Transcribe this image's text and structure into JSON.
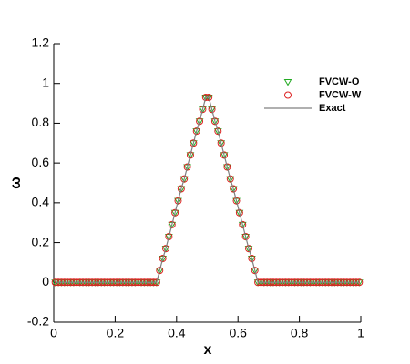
{
  "chart_data": {
    "type": "line",
    "x_label": "x",
    "y_label": "ω",
    "xlim": [
      0,
      1
    ],
    "ylim": [
      -0.2,
      1.2
    ],
    "xticks": [
      0,
      0.2,
      0.4,
      0.6,
      0.8,
      1
    ],
    "yticks": [
      -0.2,
      0,
      0.2,
      0.4,
      0.6,
      0.8,
      1,
      1.2
    ],
    "x": [
      0.005,
      0.015,
      0.025,
      0.035,
      0.045,
      0.055,
      0.065,
      0.075,
      0.085,
      0.095,
      0.105,
      0.115,
      0.125,
      0.135,
      0.145,
      0.155,
      0.165,
      0.175,
      0.185,
      0.195,
      0.205,
      0.215,
      0.225,
      0.235,
      0.245,
      0.255,
      0.265,
      0.275,
      0.285,
      0.295,
      0.305,
      0.315,
      0.325,
      0.335,
      0.345,
      0.355,
      0.365,
      0.375,
      0.385,
      0.395,
      0.405,
      0.415,
      0.425,
      0.435,
      0.445,
      0.455,
      0.465,
      0.475,
      0.485,
      0.495,
      0.505,
      0.515,
      0.525,
      0.535,
      0.545,
      0.555,
      0.565,
      0.575,
      0.585,
      0.595,
      0.605,
      0.615,
      0.625,
      0.635,
      0.645,
      0.655,
      0.665,
      0.675,
      0.685,
      0.695,
      0.705,
      0.715,
      0.725,
      0.735,
      0.745,
      0.755,
      0.765,
      0.775,
      0.785,
      0.795,
      0.805,
      0.815,
      0.825,
      0.835,
      0.845,
      0.855,
      0.865,
      0.875,
      0.885,
      0.895,
      0.905,
      0.915,
      0.925,
      0.935,
      0.945,
      0.955,
      0.965,
      0.975,
      0.985,
      0.995
    ],
    "series": [
      {
        "name": "FVCW-O",
        "color": "#22aa22",
        "marker": "triangle-down",
        "values": [
          0,
          0,
          0,
          0,
          0,
          0,
          0,
          0,
          0,
          0,
          0,
          0,
          0,
          0,
          0,
          0,
          0,
          0,
          0,
          0,
          0,
          0,
          0,
          0,
          0,
          0,
          0,
          0,
          0,
          0,
          0,
          0,
          0,
          0,
          0.06,
          0.12,
          0.17,
          0.23,
          0.29,
          0.35,
          0.41,
          0.47,
          0.52,
          0.58,
          0.64,
          0.7,
          0.76,
          0.81,
          0.87,
          0.93,
          0.93,
          0.87,
          0.81,
          0.76,
          0.7,
          0.64,
          0.58,
          0.52,
          0.47,
          0.41,
          0.35,
          0.29,
          0.23,
          0.17,
          0.12,
          0.06,
          0,
          0,
          0,
          0,
          0,
          0,
          0,
          0,
          0,
          0,
          0,
          0,
          0,
          0,
          0,
          0,
          0,
          0,
          0,
          0,
          0,
          0,
          0,
          0,
          0,
          0,
          0,
          0,
          0,
          0,
          0,
          0,
          0,
          0
        ]
      },
      {
        "name": "FVCW-W",
        "color": "#dd2222",
        "marker": "circle",
        "values": [
          0,
          0,
          0,
          0,
          0,
          0,
          0,
          0,
          0,
          0,
          0,
          0,
          0,
          0,
          0,
          0,
          0,
          0,
          0,
          0,
          0,
          0,
          0,
          0,
          0,
          0,
          0,
          0,
          0,
          0,
          0,
          0,
          0,
          0,
          0.06,
          0.12,
          0.17,
          0.23,
          0.29,
          0.35,
          0.41,
          0.47,
          0.52,
          0.58,
          0.64,
          0.7,
          0.76,
          0.81,
          0.87,
          0.93,
          0.93,
          0.87,
          0.81,
          0.76,
          0.7,
          0.64,
          0.58,
          0.52,
          0.47,
          0.41,
          0.35,
          0.29,
          0.23,
          0.17,
          0.12,
          0.06,
          0,
          0,
          0,
          0,
          0,
          0,
          0,
          0,
          0,
          0,
          0,
          0,
          0,
          0,
          0,
          0,
          0,
          0,
          0,
          0,
          0,
          0,
          0,
          0,
          0,
          0,
          0,
          0,
          0,
          0,
          0,
          0,
          0,
          0
        ]
      },
      {
        "name": "Exact",
        "color": "#808080",
        "marker": "line",
        "values": [
          0,
          0,
          0,
          0,
          0,
          0,
          0,
          0,
          0,
          0,
          0,
          0,
          0,
          0,
          0,
          0,
          0,
          0,
          0,
          0,
          0,
          0,
          0,
          0,
          0,
          0,
          0,
          0,
          0,
          0,
          0,
          0,
          0,
          0,
          0.06,
          0.12,
          0.17,
          0.23,
          0.29,
          0.35,
          0.41,
          0.47,
          0.52,
          0.58,
          0.64,
          0.7,
          0.76,
          0.81,
          0.87,
          0.93,
          0.93,
          0.87,
          0.81,
          0.76,
          0.7,
          0.64,
          0.58,
          0.52,
          0.47,
          0.41,
          0.35,
          0.29,
          0.23,
          0.17,
          0.12,
          0.06,
          0,
          0,
          0,
          0,
          0,
          0,
          0,
          0,
          0,
          0,
          0,
          0,
          0,
          0,
          0,
          0,
          0,
          0,
          0,
          0,
          0,
          0,
          0,
          0,
          0,
          0,
          0,
          0,
          0,
          0,
          0,
          0,
          0,
          0
        ]
      }
    ]
  }
}
